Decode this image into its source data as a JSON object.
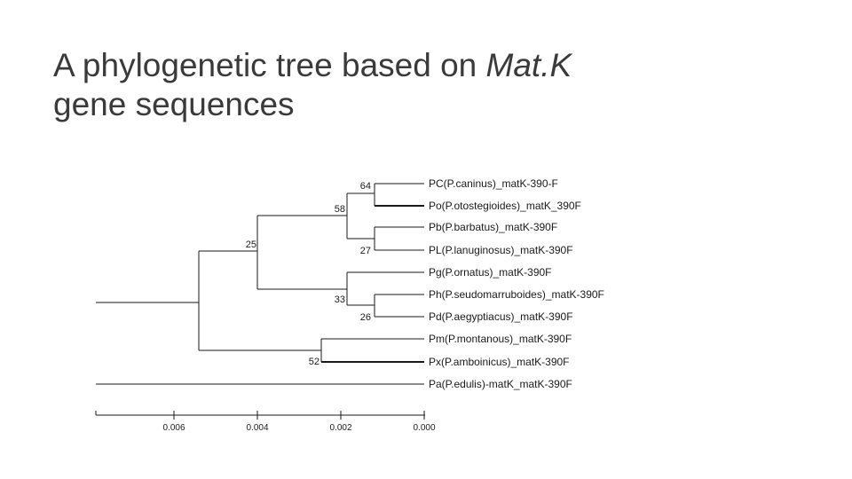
{
  "title": {
    "text_before": "A phylogenetic tree based on ",
    "gene_name": "Mat.K",
    "text_after": "gene sequences"
  },
  "tree": {
    "leaves": [
      "PC(P.caninus)_matK-390-F",
      "Po(P.otostegioides)_matK_390F",
      "Pb(P.barbatus)_matK-390F",
      "PL(P.lanuginosus)_matK-390F",
      "Pg(P.ornatus)_matK-390F",
      "Ph(P.seudomarruboides)_matK-390F",
      "Pd(P.aegyptiacus)_matK-390F",
      "Pm(P.montanous)_matK-390F",
      "Px(P.amboinicus)_matK-390F",
      "Pa(P.edulis)-matK_matK-390F"
    ],
    "bootstrap_values": [
      "64",
      "58",
      "27",
      "25",
      "33",
      "26",
      "52"
    ],
    "scale_ticks": [
      "0.006",
      "0.004",
      "0.002",
      "0.000"
    ]
  }
}
